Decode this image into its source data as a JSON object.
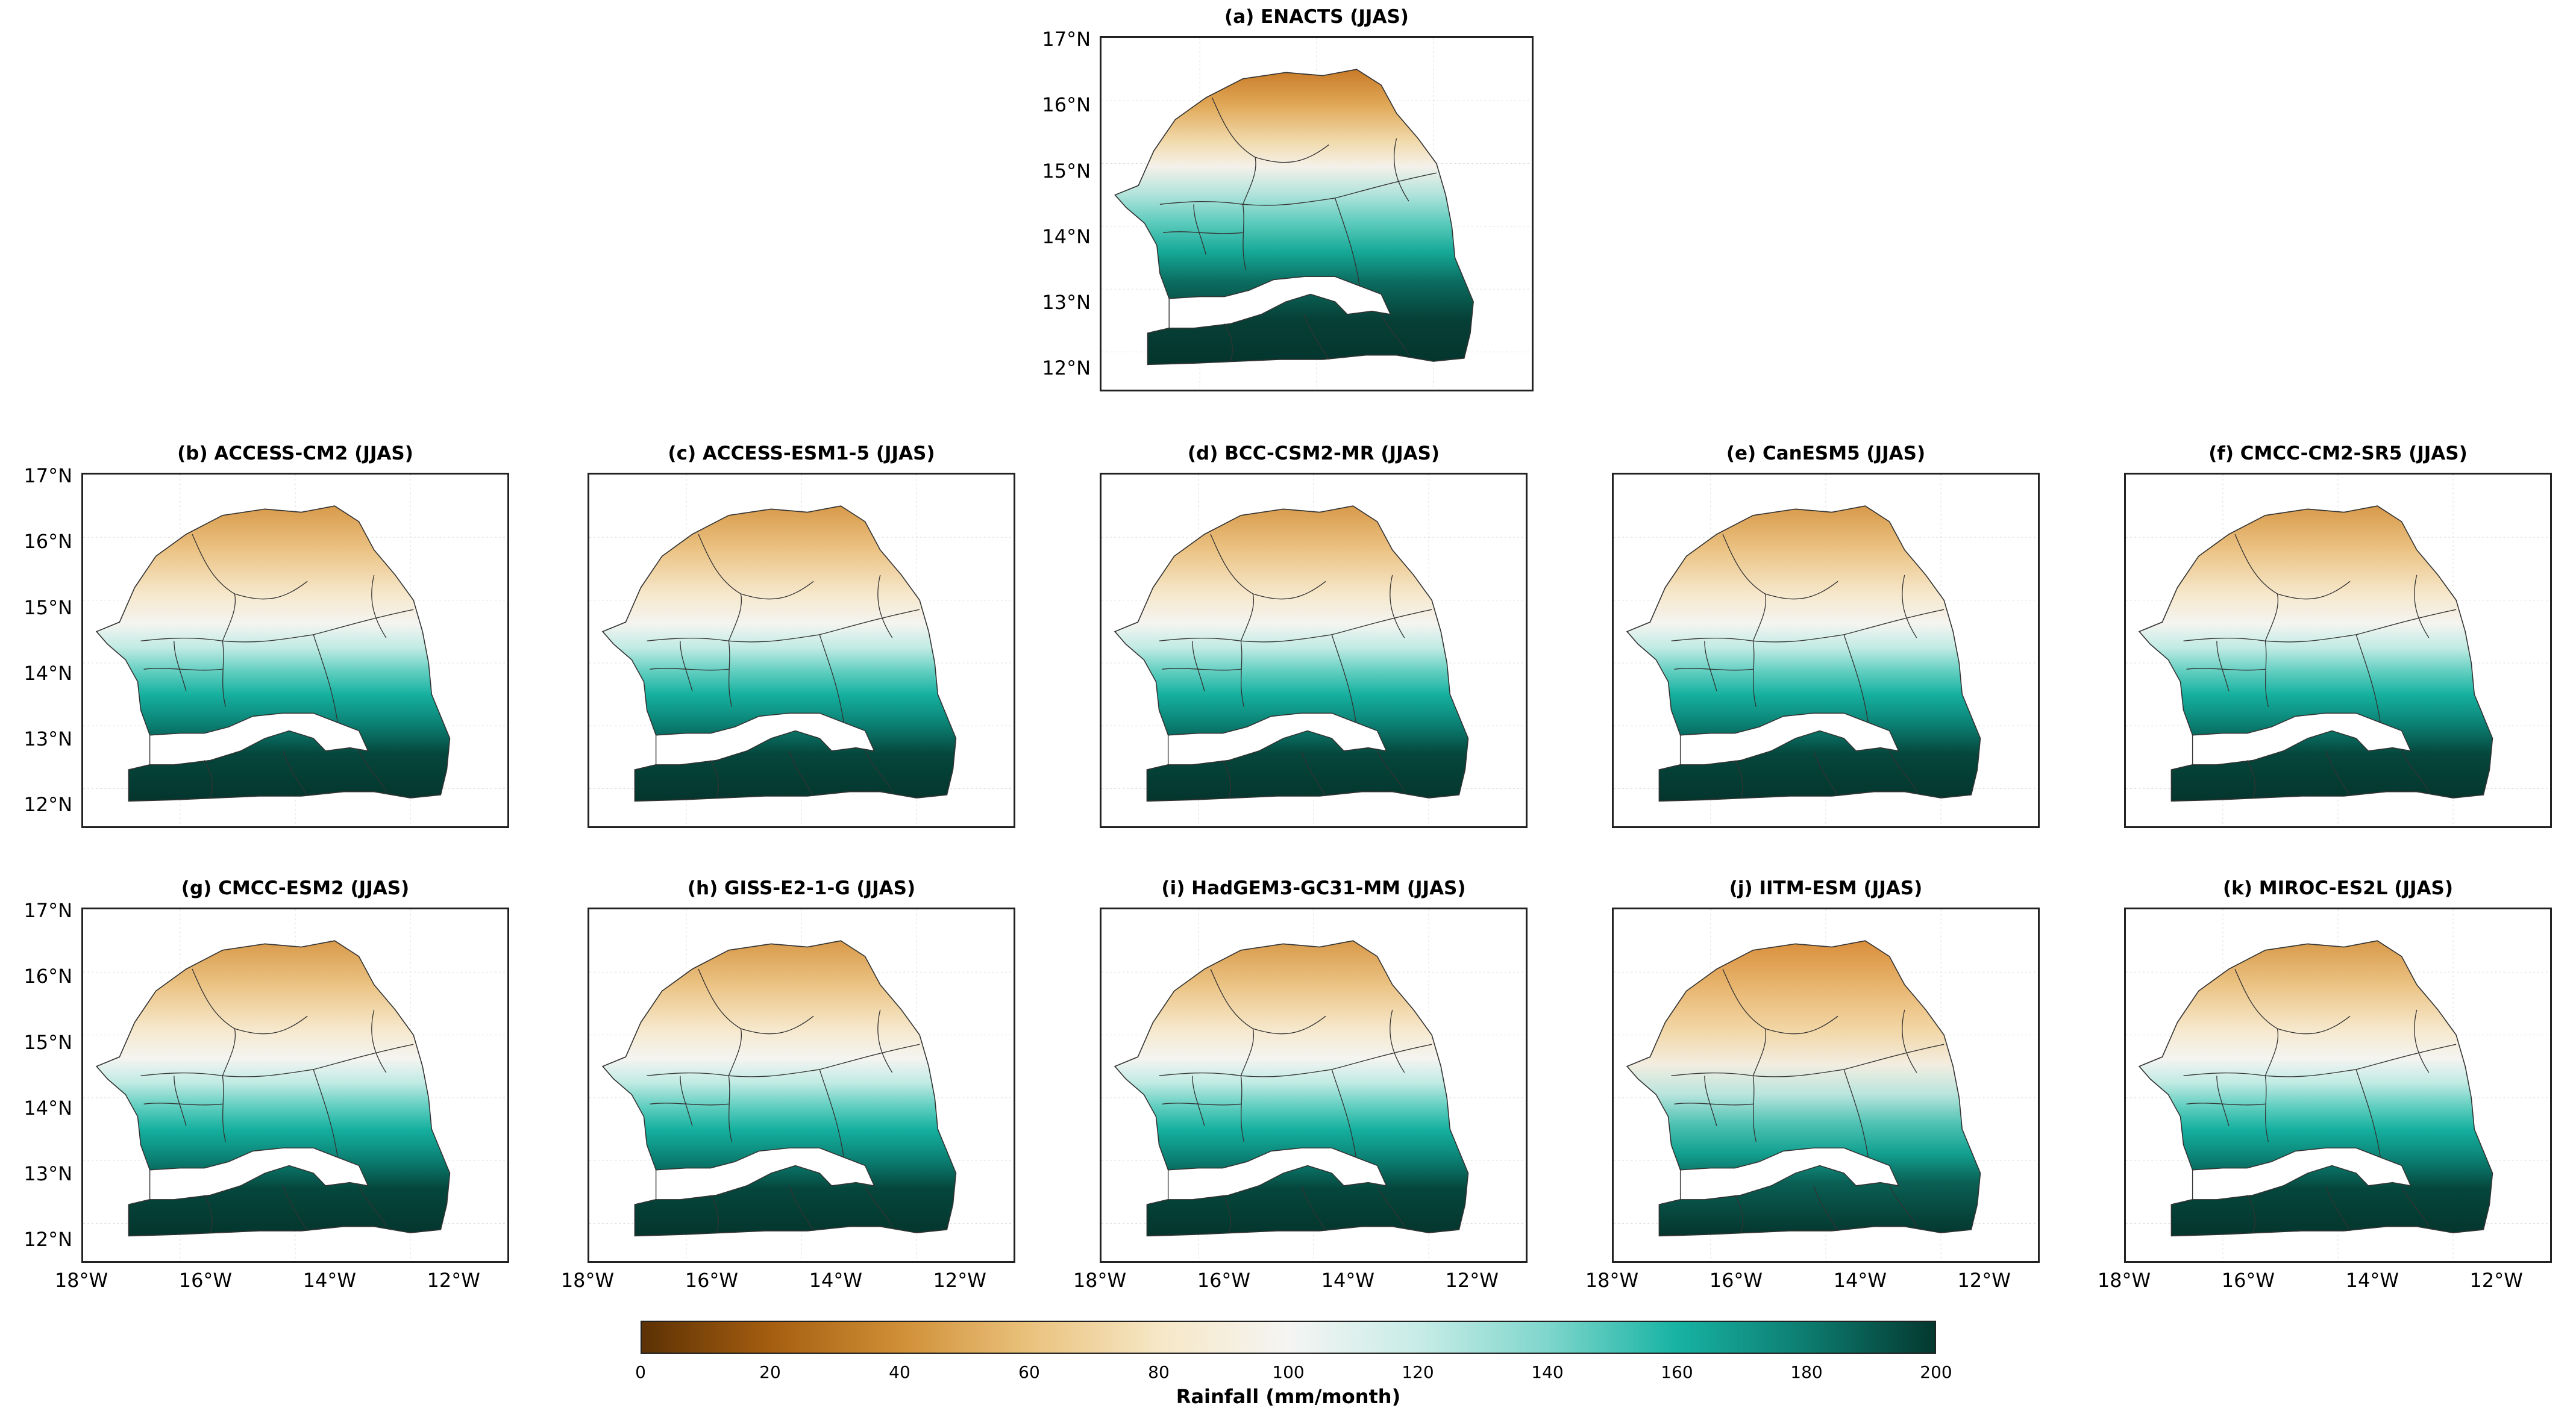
{
  "figure": {
    "panels": [
      {
        "id": "a",
        "title": "(a) ENACTS (JJAS)"
      },
      {
        "id": "b",
        "title": "(b) ACCESS-CM2 (JJAS)"
      },
      {
        "id": "c",
        "title": "(c) ACCESS-ESM1-5 (JJAS)"
      },
      {
        "id": "d",
        "title": "(d) BCC-CSM2-MR (JJAS)"
      },
      {
        "id": "e",
        "title": "(e) CanESM5 (JJAS)"
      },
      {
        "id": "f",
        "title": "(f) CMCC-CM2-SR5 (JJAS)"
      },
      {
        "id": "g",
        "title": "(g) CMCC-ESM2 (JJAS)"
      },
      {
        "id": "h",
        "title": "(h) GISS-E2-1-G (JJAS)"
      },
      {
        "id": "i",
        "title": "(i) HadGEM3-GC31-MM (JJAS)"
      },
      {
        "id": "j",
        "title": "(j) IITM-ESM (JJAS)"
      },
      {
        "id": "k",
        "title": "(k) MIROC-ES2L (JJAS)"
      }
    ],
    "lat_ticks": [
      "17°N",
      "16°N",
      "15°N",
      "14°N",
      "13°N",
      "12°N"
    ],
    "lon_ticks": [
      "18°W",
      "16°W",
      "14°W",
      "12°W"
    ],
    "colorbar": {
      "label": "Rainfall (mm/month)",
      "ticks": [
        "0",
        "20",
        "40",
        "60",
        "80",
        "100",
        "120",
        "140",
        "160",
        "180",
        "200"
      ],
      "min": 0,
      "max": 200,
      "colors": [
        "#5c3104",
        "#a55e10",
        "#d08f36",
        "#eac27d",
        "#f6e7c6",
        "#f5f5f3",
        "#c8ece7",
        "#7fd6cc",
        "#17b3a3",
        "#0d7c70",
        "#04382f"
      ]
    }
  }
}
